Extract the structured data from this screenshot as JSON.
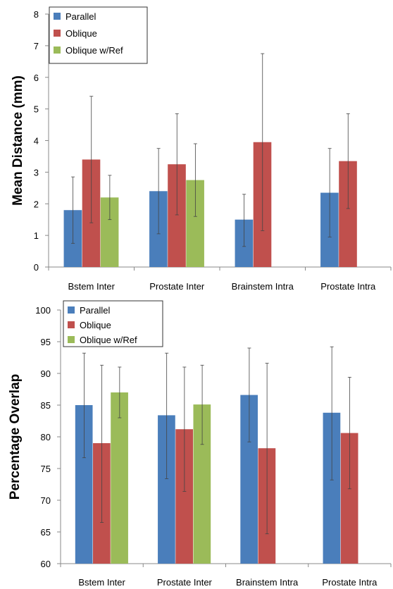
{
  "chart_data": [
    {
      "type": "bar",
      "ylabel": "Mean Distance (mm)",
      "ylim": [
        0,
        8
      ],
      "yticks": [
        0,
        1,
        2,
        3,
        4,
        5,
        6,
        7,
        8
      ],
      "categories": [
        "Bstem Inter",
        "Prostate Inter",
        "Brainstem Intra",
        "Prostate Intra"
      ],
      "legend_position": "top-left",
      "grid": false,
      "error_bars": true,
      "series": [
        {
          "name": "Parallel",
          "color": "#4a7ebb",
          "values": [
            1.8,
            2.4,
            1.5,
            2.35
          ],
          "err_low": [
            0.75,
            1.05,
            0.65,
            0.95
          ],
          "err_high": [
            2.85,
            3.75,
            2.3,
            3.75
          ]
        },
        {
          "name": "Oblique",
          "color": "#c0504d",
          "values": [
            3.4,
            3.25,
            3.95,
            3.35
          ],
          "err_low": [
            1.4,
            1.65,
            1.15,
            1.85
          ],
          "err_high": [
            5.4,
            4.85,
            6.75,
            4.85
          ]
        },
        {
          "name": "Oblique w/Ref",
          "color": "#9bbb59",
          "values": [
            2.2,
            2.75,
            null,
            null
          ],
          "err_low": [
            1.5,
            1.6,
            null,
            null
          ],
          "err_high": [
            2.9,
            3.9,
            null,
            null
          ]
        }
      ]
    },
    {
      "type": "bar",
      "ylabel": "Percentage Overlap",
      "ylim": [
        60,
        100
      ],
      "yticks": [
        60,
        65,
        70,
        75,
        80,
        85,
        90,
        95,
        100
      ],
      "categories": [
        "Bstem Inter",
        "Prostate Inter",
        "Brainstem Intra",
        "Prostate Intra"
      ],
      "legend_position": "top-left",
      "grid": false,
      "error_bars": true,
      "series": [
        {
          "name": "Parallel",
          "color": "#4a7ebb",
          "values": [
            85,
            83.4,
            86.6,
            83.8
          ],
          "err_low": [
            76.7,
            73.4,
            79.2,
            73.2
          ],
          "err_high": [
            93.2,
            93.2,
            94,
            94.2
          ]
        },
        {
          "name": "Oblique",
          "color": "#c0504d",
          "values": [
            79,
            81.2,
            78.2,
            80.6
          ],
          "err_low": [
            66.5,
            71.4,
            64.7,
            71.8
          ],
          "err_high": [
            91.3,
            91,
            91.6,
            89.4
          ]
        },
        {
          "name": "Oblique w/Ref",
          "color": "#9bbb59",
          "values": [
            87,
            85.1,
            null,
            null
          ],
          "err_low": [
            83,
            78.8,
            null,
            null
          ],
          "err_high": [
            91,
            91.3,
            null,
            null
          ]
        }
      ]
    }
  ]
}
